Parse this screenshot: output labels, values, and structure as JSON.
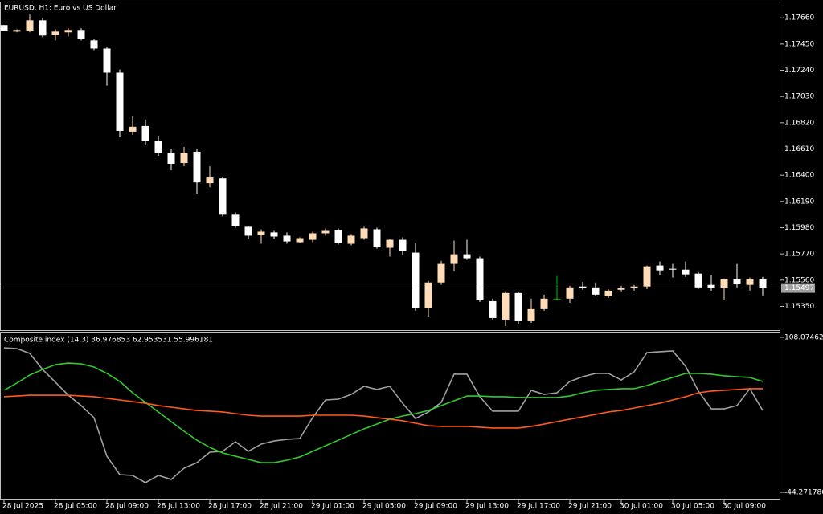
{
  "chart_data": [
    {
      "type": "candlestick",
      "title": "EURUSD, H1:  Euro vs US Dollar",
      "categories": [
        "28 Jul 2025",
        null,
        null,
        null,
        "28 Jul 05:00",
        null,
        null,
        null,
        "28 Jul 09:00",
        null,
        null,
        null,
        "28 Jul 13:00",
        null,
        null,
        null,
        "28 Jul 17:00",
        null,
        null,
        null,
        "28 Jul 21:00",
        null,
        null,
        null,
        "29 Jul 01:00",
        null,
        null,
        null,
        "29 Jul 05:00",
        null,
        null,
        null,
        "29 Jul 09:00",
        null,
        null,
        null,
        "29 Jul 13:00",
        null,
        null,
        null,
        "29 Jul 17:00",
        null,
        null,
        null,
        "29 Jul 21:00",
        null,
        null,
        null,
        "30 Jul 01:00",
        null,
        null,
        null,
        "30 Jul 05:00",
        null,
        null,
        null,
        "30 Jul 09:00",
        null,
        null,
        null
      ],
      "open": [
        1.17602,
        1.1755,
        1.17557,
        1.1764,
        1.17524,
        1.17544,
        1.17563,
        1.17479,
        1.17414,
        1.17221,
        1.16749,
        1.16794,
        1.16671,
        1.16575,
        1.16497,
        1.16588,
        1.16336,
        1.16374,
        1.16084,
        1.15987,
        1.15922,
        1.15942,
        1.15916,
        1.15864,
        1.15883,
        1.15935,
        1.15961,
        1.15851,
        1.15896,
        1.15967,
        1.15819,
        1.15883,
        1.1578,
        1.15334,
        1.15541,
        1.1569,
        1.15767,
        1.15735,
        1.15392,
        1.15244,
        1.15457,
        1.15231,
        1.15328,
        1.15412,
        1.15412,
        1.15509,
        1.15502,
        1.15431,
        1.15483,
        1.15496,
        1.15509,
        1.15677,
        1.15651,
        1.15644,
        1.15612,
        1.15522,
        1.15496,
        1.15567,
        1.15522,
        1.15567
      ],
      "high": [
        1.17602,
        1.17569,
        1.17686,
        1.1766,
        1.17569,
        1.17576,
        1.17576,
        1.17492,
        1.17427,
        1.17246,
        1.16872,
        1.16846,
        1.16717,
        1.16613,
        1.16626,
        1.16613,
        1.16471,
        1.16387,
        1.16103,
        1.15993,
        1.15967,
        1.15954,
        1.15942,
        1.15903,
        1.15948,
        1.15974,
        1.15974,
        1.15929,
        1.15987,
        1.1598,
        1.1589,
        1.15903,
        1.15858,
        1.15554,
        1.15715,
        1.15877,
        1.15883,
        1.15748,
        1.15412,
        1.1547,
        1.1547,
        1.15412,
        1.15444,
        1.15593,
        1.15515,
        1.15547,
        1.15541,
        1.15489,
        1.15515,
        1.15522,
        1.15677,
        1.15709,
        1.1569,
        1.15709,
        1.15625,
        1.15599,
        1.15573,
        1.1569,
        1.1558,
        1.15586
      ],
      "low": [
        1.17557,
        1.17544,
        1.17544,
        1.17505,
        1.17479,
        1.17511,
        1.17479,
        1.17401,
        1.17117,
        1.16704,
        1.16723,
        1.16639,
        1.16555,
        1.16439,
        1.16471,
        1.16252,
        1.16303,
        1.16071,
        1.1598,
        1.1589,
        1.15851,
        1.1589,
        1.15851,
        1.15858,
        1.15864,
        1.15916,
        1.15845,
        1.15838,
        1.15883,
        1.15812,
        1.15748,
        1.15761,
        1.15315,
        1.15263,
        1.15522,
        1.15631,
        1.15722,
        1.15386,
        1.15244,
        1.15192,
        1.15205,
        1.15218,
        1.15315,
        1.15399,
        1.15379,
        1.15483,
        1.15431,
        1.15418,
        1.1547,
        1.15476,
        1.15489,
        1.15599,
        1.1558,
        1.15586,
        1.15489,
        1.15476,
        1.15399,
        1.15502,
        1.15476,
        1.15438
      ],
      "close": [
        1.17557,
        1.17563,
        1.1764,
        1.17518,
        1.1755,
        1.17563,
        1.17492,
        1.17414,
        1.17221,
        1.16755,
        1.16788,
        1.16671,
        1.16575,
        1.16491,
        1.16581,
        1.16342,
        1.16381,
        1.16084,
        1.15993,
        1.15916,
        1.15948,
        1.15909,
        1.1587,
        1.15896,
        1.15935,
        1.15954,
        1.15858,
        1.15916,
        1.15974,
        1.15825,
        1.15883,
        1.15793,
        1.15334,
        1.15541,
        1.1569,
        1.15767,
        1.15735,
        1.15399,
        1.15257,
        1.15457,
        1.15231,
        1.15328,
        1.15412,
        1.15412,
        1.15502,
        1.15496,
        1.15444,
        1.15476,
        1.15496,
        1.15509,
        1.1567,
        1.15638,
        1.15644,
        1.15606,
        1.15502,
        1.15496,
        1.15567,
        1.15528,
        1.15567,
        1.15497
      ],
      "up_color": "#ffdcb8",
      "down_color": "#ffffff",
      "doji_color": "#00c000",
      "last_price": 1.15497,
      "ylim": [
        1.1516,
        1.1779
      ],
      "yticks": [
        {
          "value": 1.1766,
          "label": "1.17660"
        },
        {
          "value": 1.1745,
          "label": "1.17450"
        },
        {
          "value": 1.1724,
          "label": "1.17240"
        },
        {
          "value": 1.1703,
          "label": "1.17030"
        },
        {
          "value": 1.1682,
          "label": "1.16820"
        },
        {
          "value": 1.1661,
          "label": "1.16610"
        },
        {
          "value": 1.164,
          "label": "1.16400"
        },
        {
          "value": 1.1619,
          "label": "1.16190"
        },
        {
          "value": 1.1598,
          "label": "1.15980"
        },
        {
          "value": 1.1577,
          "label": "1.15770"
        },
        {
          "value": 1.1556,
          "label": "1.15560"
        },
        {
          "value": 1.1535,
          "label": "1.15350"
        }
      ],
      "grid": false
    },
    {
      "type": "line",
      "title": "Composite index (14,3) 36.976853 62.953531 55.996181",
      "series": [
        {
          "color": "#a0a0a0",
          "values": [
            97.8,
            97.0,
            92.3,
            76.5,
            63.9,
            51.2,
            41.0,
            29.1,
            -8.8,
            -26.9,
            -27.7,
            -34.8,
            -27.7,
            -31.6,
            -20.6,
            -15.1,
            -4.8,
            -4.0,
            5.5,
            -4.0,
            3.1,
            6.2,
            7.8,
            8.6,
            29.1,
            46.5,
            47.3,
            52.0,
            59.9,
            56.8,
            59.9,
            43.3,
            28.3,
            34.7,
            44.1,
            71.8,
            71.8,
            49.7,
            35.5,
            35.5,
            35.5,
            56.0,
            52.0,
            53.6,
            64.7,
            69.4,
            72.6,
            72.6,
            66.2,
            74.1,
            93.1,
            93.9,
            94.7,
            79.7,
            55.2,
            37.8,
            37.8,
            41.0,
            57.6,
            36.2
          ]
        },
        {
          "color": "#32c832",
          "values": [
            56.0,
            63.1,
            71.0,
            76.5,
            81.2,
            82.8,
            82.0,
            78.9,
            72.6,
            64.7,
            53.6,
            44.1,
            34.7,
            25.2,
            15.7,
            7.0,
            -0.1,
            -5.6,
            -8.8,
            -11.9,
            -15.1,
            -15.1,
            -12.7,
            -9.5,
            -4.0,
            1.5,
            7.0,
            12.6,
            18.1,
            22.8,
            27.6,
            30.7,
            33.1,
            36.2,
            41.0,
            45.7,
            50.4,
            50.4,
            49.7,
            49.7,
            48.9,
            48.9,
            48.9,
            48.9,
            50.4,
            53.6,
            56.0,
            56.8,
            57.6,
            57.6,
            60.7,
            64.7,
            68.6,
            72.6,
            72.6,
            71.8,
            70.2,
            69.4,
            68.6,
            64.7
          ]
        },
        {
          "color": "#ff5a1e",
          "values": [
            49.7,
            50.4,
            51.2,
            51.2,
            51.2,
            51.2,
            50.4,
            49.7,
            48.1,
            46.5,
            44.9,
            43.3,
            41.0,
            39.4,
            37.8,
            36.2,
            35.5,
            34.7,
            33.1,
            31.5,
            30.7,
            30.7,
            30.7,
            30.7,
            31.5,
            31.5,
            31.5,
            31.5,
            30.7,
            29.1,
            27.6,
            26.0,
            23.6,
            21.2,
            20.5,
            20.5,
            20.5,
            19.7,
            18.9,
            18.9,
            18.9,
            20.5,
            22.8,
            25.2,
            27.6,
            29.9,
            32.3,
            34.7,
            36.2,
            38.6,
            41.0,
            43.3,
            46.5,
            49.7,
            53.6,
            55.2,
            56.0,
            56.8,
            57.6,
            57.6
          ]
        }
      ],
      "ylim": [
        -44.271786,
        108.074627
      ],
      "yticks": [
        108.074627,
        -44.271786
      ],
      "grid": false
    }
  ]
}
